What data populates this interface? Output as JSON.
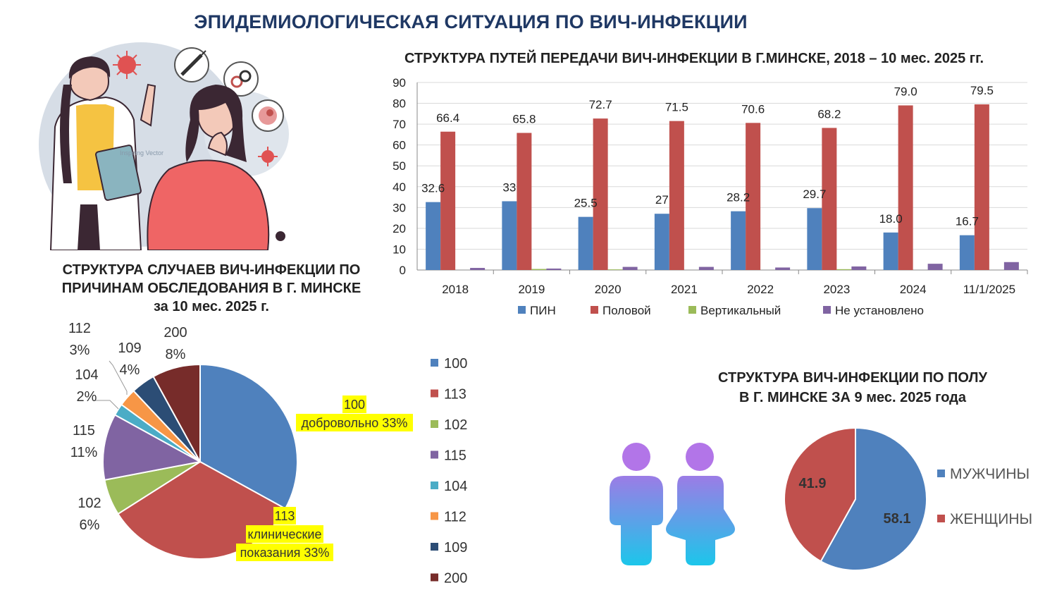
{
  "title": "ЭПИДЕМИОЛОГИЧЕСКАЯ СИТУАЦИЯ ПО ВИЧ-ИНФЕКЦИИ",
  "colors": {
    "title": "#1f3864",
    "blue": "#4f81bd",
    "red": "#c0504d",
    "green": "#9bbb59",
    "purple": "#8064a2",
    "teal": "#4bacc6",
    "orange": "#f79646",
    "navy": "#2c4d75",
    "brown": "#772c2a",
    "highlight": "#ffff00"
  },
  "illustration": {
    "watermark": "Inspiring Vector"
  },
  "chart_data": [
    {
      "type": "bar",
      "title": "СТРУКТУРА ПУТЕЙ ПЕРЕДАЧИ ВИЧ-ИНФЕКЦИИ В Г.МИНСКЕ, 2018 – 10 мес. 2025 гг.",
      "categories": [
        "2018",
        "2019",
        "2020",
        "2021",
        "2022",
        "2023",
        "2024",
        "11/1/2025"
      ],
      "ylim": [
        0,
        90
      ],
      "yticks": [
        "0",
        "10",
        "20",
        "30",
        "40",
        "50",
        "60",
        "70",
        "80",
        "90"
      ],
      "legend_position": "bottom",
      "series": [
        {
          "name": "ПИН",
          "values": [
            32.6,
            33,
            25.5,
            27,
            28.2,
            29.7,
            18.0,
            16.7
          ],
          "labels": [
            "32.6",
            "33",
            "25.5",
            "27",
            "28.2",
            "29.7",
            "18.0",
            "16.7"
          ]
        },
        {
          "name": "Половой",
          "values": [
            66.4,
            65.8,
            72.7,
            71.5,
            70.6,
            68.2,
            79.0,
            79.5
          ],
          "labels": [
            "66.4",
            "65.8",
            "72.7",
            "71.5",
            "70.6",
            "68.2",
            "79.0",
            "79.5"
          ]
        },
        {
          "name": "Вертикальный",
          "values": [
            0,
            0.5,
            0.3,
            0,
            0,
            0.4,
            0,
            0
          ],
          "labels": []
        },
        {
          "name": "Не установлено",
          "values": [
            1,
            0.7,
            1.5,
            1.5,
            1.2,
            1.7,
            3.0,
            3.8
          ],
          "labels": []
        }
      ]
    },
    {
      "type": "pie",
      "title_lines": [
        "СТРУКТУРА СЛУЧАЕВ ВИЧ-ИНФЕКЦИИ ПО",
        "ПРИЧИНАМ ОБСЛЕДОВАНИЯ В Г. МИНСКЕ",
        "за 10 мес. 2025 г."
      ],
      "legend_position": "right",
      "slices": [
        {
          "name": "100",
          "value": 33,
          "label": [
            "100",
            "добровольно 33%"
          ],
          "highlight": true
        },
        {
          "name": "113",
          "value": 33,
          "label": [
            "113",
            "клинические",
            "показания  33%"
          ],
          "highlight": true
        },
        {
          "name": "102",
          "value": 6,
          "label": [
            "102",
            "6%"
          ]
        },
        {
          "name": "115",
          "value": 11,
          "label": [
            "115",
            "11%"
          ]
        },
        {
          "name": "104",
          "value": 2,
          "label": [
            "104",
            "2%"
          ]
        },
        {
          "name": "112",
          "value": 3,
          "label": [
            "112",
            "3%"
          ]
        },
        {
          "name": "109",
          "value": 4,
          "label": [
            "109",
            "4%"
          ]
        },
        {
          "name": "200",
          "value": 8,
          "label": [
            "200",
            "8%"
          ]
        }
      ]
    },
    {
      "type": "pie",
      "title_lines": [
        "СТРУКТУРА ВИЧ-ИНФЕКЦИИ ПО ПОЛУ",
        "В Г. МИНСКЕ ЗА 9 мес. 2025 года"
      ],
      "legend_position": "right",
      "slices": [
        {
          "name": "МУЖЧИНЫ",
          "value": 58.1,
          "label": "58.1"
        },
        {
          "name": "ЖЕНЩИНЫ",
          "value": 41.9,
          "label": "41.9"
        }
      ]
    }
  ]
}
